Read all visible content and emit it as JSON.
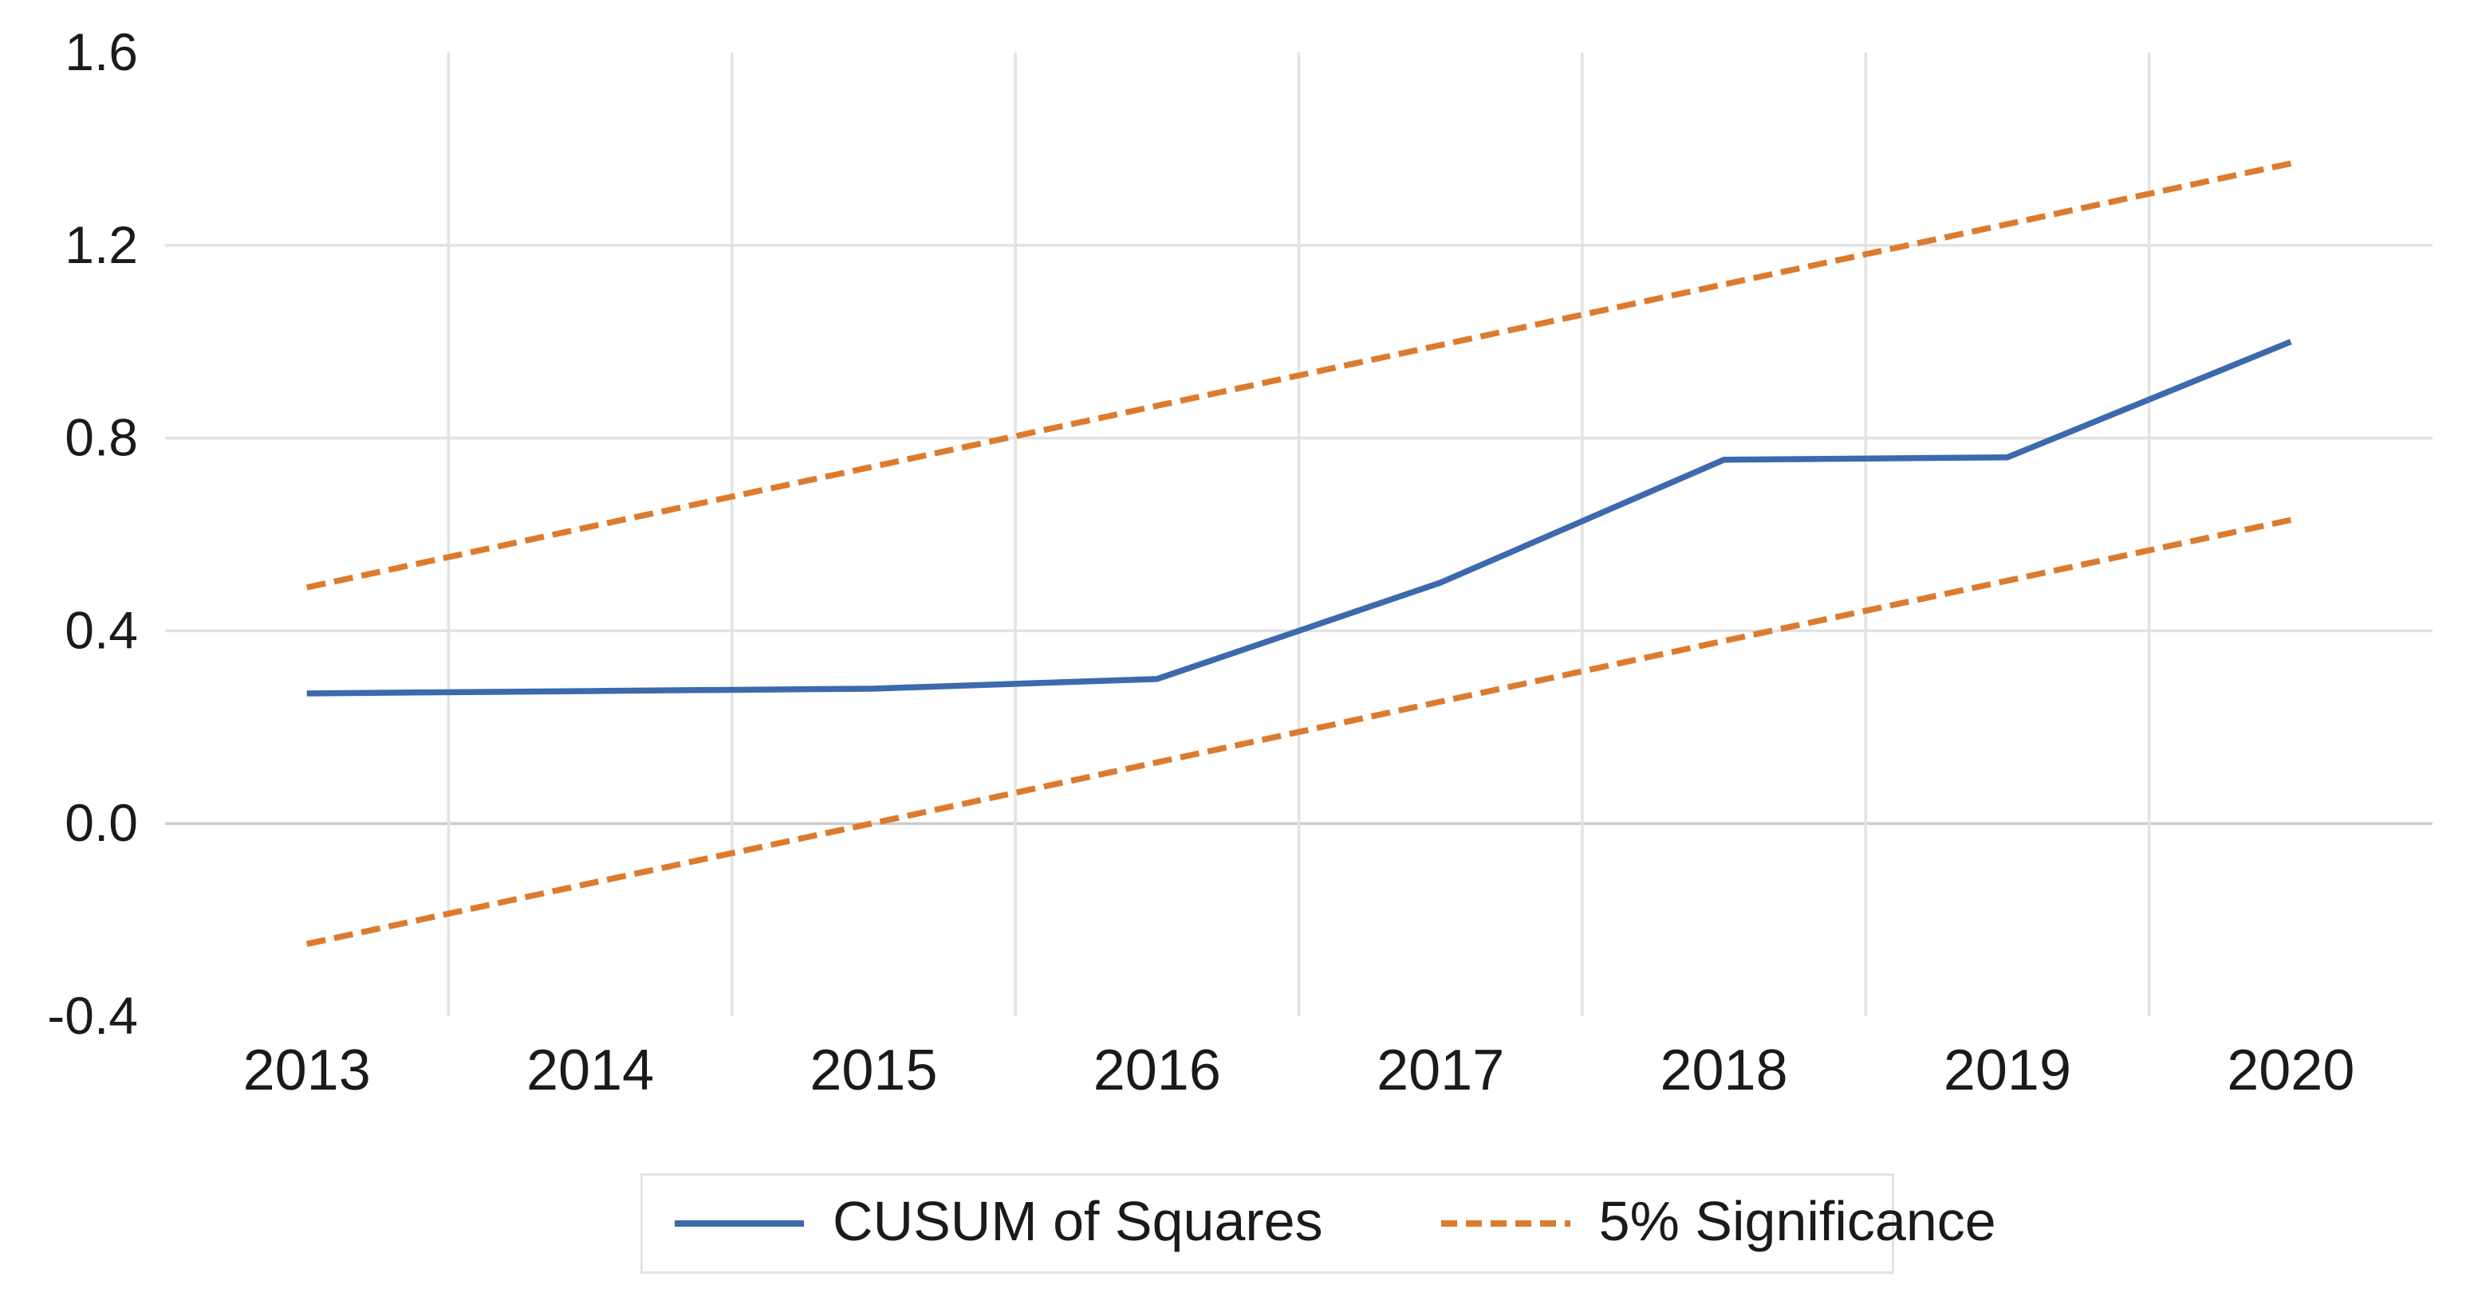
{
  "chart_data": {
    "type": "line",
    "title": "",
    "xlabel": "",
    "ylabel": "",
    "categories": [
      "2013",
      "2014",
      "2015",
      "2016",
      "2017",
      "2018",
      "2019",
      "2020"
    ],
    "series": [
      {
        "name": "CUSUM of Squares",
        "style": "solid",
        "color": "#3d69ad",
        "values": [
          0.27,
          0.275,
          0.28,
          0.3,
          0.5,
          0.755,
          0.76,
          1.0
        ]
      },
      {
        "name": "5% Significance (upper band)",
        "style": "dashed",
        "color": "#dc7b2e",
        "values": [
          0.49,
          0.616,
          0.741,
          0.867,
          0.993,
          1.119,
          1.244,
          1.37
        ]
      },
      {
        "name": "5% Significance (lower band)",
        "style": "dashed",
        "color": "#dc7b2e",
        "values": [
          -0.25,
          -0.124,
          0.001,
          0.127,
          0.253,
          0.379,
          0.504,
          0.63
        ]
      }
    ],
    "ylim": [
      -0.4,
      1.6
    ],
    "yticks": [
      1.6,
      1.2,
      0.8,
      0.4,
      0.0,
      -0.4
    ],
    "ytick_labels": [
      "1.6",
      "1.2",
      "0.8",
      "0.4",
      "0.0",
      "-0.4"
    ],
    "gridline_y_values": [
      1.2,
      0.8,
      0.4,
      0.0
    ],
    "grid": true,
    "vertical_gridlines": "between-categories",
    "legend_position": "bottom",
    "legend": [
      {
        "label": "CUSUM of Squares",
        "style": "solid",
        "color": "#3d69ad"
      },
      {
        "label": "5% Significance",
        "style": "dashed",
        "color": "#dc7b2e"
      }
    ],
    "colors": {
      "background": "#ffffff",
      "gridline": "#e3e3e3",
      "zero_gridline": "#cccccc",
      "tick_text": "#1a1a1a",
      "legend_border": "#e3e3e3"
    }
  }
}
